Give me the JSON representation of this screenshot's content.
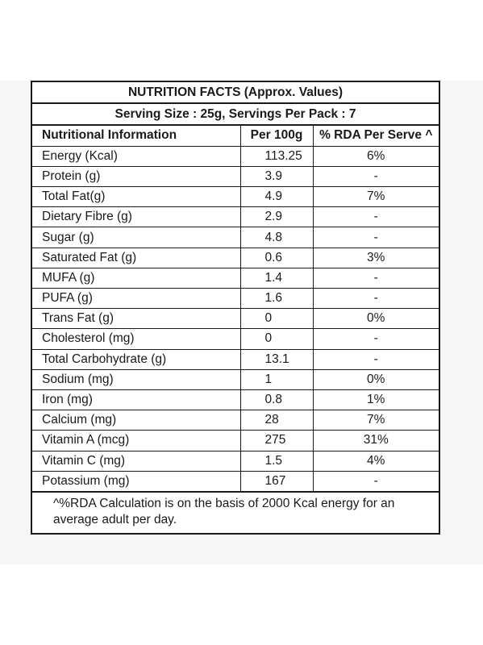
{
  "title": "NUTRITION FACTS (Approx. Values)",
  "serving": "Serving Size : 25g, Servings Per Pack : 7",
  "headers": {
    "nutrient": "Nutritional Information",
    "per100g": "Per 100g",
    "rda": "% RDA Per Serve ^"
  },
  "rows": [
    {
      "name": "Energy (Kcal)",
      "per100g": "113.25",
      "rda": "6%"
    },
    {
      "name": "Protein (g)",
      "per100g": "3.9",
      "rda": "-"
    },
    {
      "name": "Total Fat(g)",
      "per100g": "4.9",
      "rda": "7%"
    },
    {
      "name": "Dietary Fibre (g)",
      "per100g": "2.9",
      "rda": "-"
    },
    {
      "name": "Sugar (g)",
      "per100g": "4.8",
      "rda": "-"
    },
    {
      "name": "Saturated Fat (g)",
      "per100g": "0.6",
      "rda": "3%"
    },
    {
      "name": "MUFA (g)",
      "per100g": "1.4",
      "rda": "-"
    },
    {
      "name": "PUFA (g)",
      "per100g": "1.6",
      "rda": "-"
    },
    {
      "name": "Trans Fat (g)",
      "per100g": "0",
      "rda": "0%"
    },
    {
      "name": "Cholesterol (mg)",
      "per100g": "0",
      "rda": "-"
    },
    {
      "name": "Total Carbohydrate (g)",
      "per100g": "13.1",
      "rda": "-"
    },
    {
      "name": "Sodium (mg)",
      "per100g": "1",
      "rda": "0%"
    },
    {
      "name": "Iron (mg)",
      "per100g": "0.8",
      "rda": "1%"
    },
    {
      "name": "Calcium (mg)",
      "per100g": "28",
      "rda": "7%"
    },
    {
      "name": "Vitamin A (mcg)",
      "per100g": "275",
      "rda": "31%"
    },
    {
      "name": "Vitamin C (mg)",
      "per100g": "1.5",
      "rda": "4%"
    },
    {
      "name": "Potassium (mg)",
      "per100g": "167",
      "rda": "-"
    }
  ],
  "footnote": "^%RDA Calculation is on the basis of 2000 Kcal energy for an average adult per day."
}
